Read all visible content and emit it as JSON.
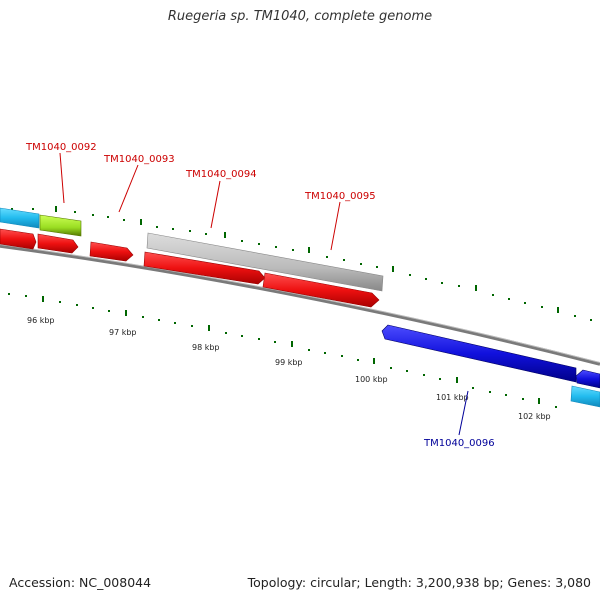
{
  "title": "Ruegeria sp. TM1040, complete genome",
  "footer": {
    "accession": "Accession: NC_008044",
    "summary": "Topology: circular; Length: 3,200,938 bp; Genes: 3,080"
  },
  "ticks": [
    {
      "label": "96 kbp"
    },
    {
      "label": "97 kbp"
    },
    {
      "label": "98 kbp"
    },
    {
      "label": "99 kbp"
    },
    {
      "label": "100 kbp"
    },
    {
      "label": "101 kbp"
    },
    {
      "label": "102 kbp"
    }
  ],
  "genes": [
    {
      "label": "TM1040_0092",
      "color": "#cc0000"
    },
    {
      "label": "TM1040_0093",
      "color": "#cc0000"
    },
    {
      "label": "TM1040_0094",
      "color": "#cc0000"
    },
    {
      "label": "TM1040_0095",
      "color": "#cc0000"
    },
    {
      "label": "TM1040_0096",
      "color": "#000099"
    }
  ],
  "colors": {
    "forward_cds": "#ee1111",
    "reverse_cds": "#1111dd",
    "cyan_feature": "#22bbee",
    "green_feature": "#99dd22",
    "gray_feature": "#bbbbbb",
    "backbone": "#888888",
    "tick": "#006600"
  }
}
